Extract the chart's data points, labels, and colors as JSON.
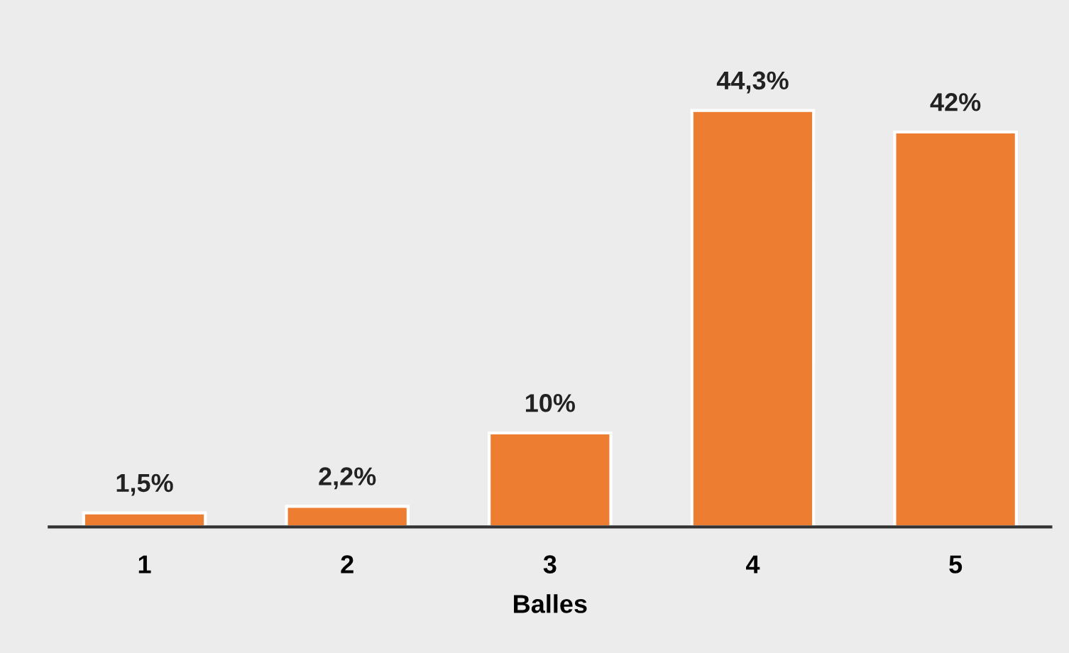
{
  "chart_data": {
    "type": "bar",
    "xlabel": "Balles",
    "categories": [
      "1",
      "2",
      "3",
      "4",
      "5"
    ],
    "values": [
      1.5,
      2.2,
      10,
      44.3,
      42
    ],
    "value_labels": [
      "1,5%",
      "2,2%",
      "10%",
      "44,3%",
      "42%"
    ],
    "color": "#ed7d31",
    "grid": false,
    "legend": false,
    "tick_labels": "x"
  }
}
